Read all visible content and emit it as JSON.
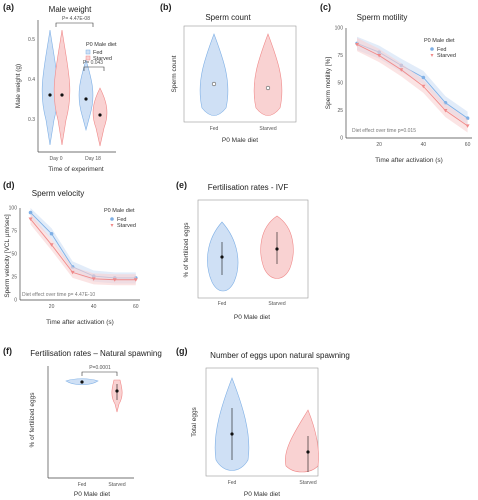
{
  "colors": {
    "fed": "#7fb0e6",
    "starved": "#f08a8a",
    "fed_fill": "#cfe0f5",
    "starved_fill": "#f9d2d2",
    "axis": "#444444"
  },
  "chart_data": [
    {
      "panel": "(a)",
      "type": "violin",
      "title": "Male weight",
      "xlabel": "Time of experiment",
      "ylabel": "Male weight (g)",
      "categories": [
        "Day 0",
        "Day 18"
      ],
      "ylim": [
        0.25,
        0.55
      ],
      "yticks": [
        "0.3",
        "0.4",
        "0.5"
      ],
      "series": [
        {
          "name": "Fed",
          "means": [
            0.41,
            0.39
          ]
        },
        {
          "name": "Starved",
          "means": [
            0.41,
            0.32
          ]
        }
      ],
      "legend_title": "P0 Male diet",
      "annotations": [
        "P= 4.47E-08",
        "P= 0.043"
      ]
    },
    {
      "panel": "(b)",
      "type": "violin",
      "title": "Sperm count",
      "xlabel": "P0 Male diet",
      "ylabel": "Sperm count",
      "categories": [
        "Fed",
        "Starved"
      ],
      "series": [
        {
          "name": "Fed",
          "means": [
            0.5
          ]
        },
        {
          "name": "Starved",
          "means": [
            0.45
          ]
        }
      ]
    },
    {
      "panel": "(c)",
      "type": "line",
      "title": "Sperm motility",
      "xlabel": "Time after activation (s)",
      "ylabel": "Sperm motility [%]",
      "x": [
        10,
        20,
        30,
        40,
        50,
        60
      ],
      "xticks": [
        "20",
        "40",
        "60"
      ],
      "xlim": [
        5,
        62
      ],
      "ylim": [
        0,
        100
      ],
      "yticks": [
        "0",
        "25",
        "50",
        "75",
        "100"
      ],
      "series": [
        {
          "name": "Fed",
          "values": [
            86,
            78,
            66,
            55,
            32,
            18
          ]
        },
        {
          "name": "Starved",
          "values": [
            85,
            75,
            62,
            47,
            25,
            11
          ]
        }
      ],
      "legend_title": "P0 Male diet",
      "annotations": [
        "Diet effect over time p=0.015"
      ]
    },
    {
      "panel": "(d)",
      "type": "line",
      "title": "Sperm velocity",
      "xlabel": "Time after activation (s)",
      "ylabel": "Sperm velocity [VCL µm/sec]",
      "x": [
        10,
        20,
        30,
        40,
        50,
        60
      ],
      "xticks": [
        "20",
        "40",
        "60"
      ],
      "xlim": [
        5,
        62
      ],
      "ylim": [
        0,
        100
      ],
      "yticks": [
        "0",
        "25",
        "50",
        "75",
        "100"
      ],
      "series": [
        {
          "name": "Fed",
          "values": [
            95,
            72,
            36,
            26,
            24,
            24
          ]
        },
        {
          "name": "Starved",
          "values": [
            88,
            60,
            30,
            23,
            22,
            22
          ]
        }
      ],
      "legend_title": "P0 Male diet",
      "annotations": [
        "Diet effect over time p= 4.47E-10"
      ]
    },
    {
      "panel": "(e)",
      "type": "violin",
      "title": "Fertilisation rates - IVF",
      "xlabel": "P0 Male diet",
      "ylabel": "% of fertilized eggs",
      "categories": [
        "Fed",
        "Starved"
      ],
      "series": [
        {
          "name": "Fed",
          "means": [
            0.47
          ]
        },
        {
          "name": "Starved",
          "means": [
            0.55
          ]
        }
      ]
    },
    {
      "panel": "(f)",
      "type": "violin",
      "title": "Fertilisation rates – Natural spawning",
      "xlabel": "P0 Male diet",
      "ylabel": "% of fertilized eggs",
      "categories": [
        "Fed",
        "Starved"
      ],
      "series": [
        {
          "name": "Fed",
          "means": [
            0.96
          ]
        },
        {
          "name": "Starved",
          "means": [
            0.88
          ]
        }
      ],
      "annotations": [
        "P=0.0001"
      ]
    },
    {
      "panel": "(g)",
      "type": "violin",
      "title": "Number of eggs upon natural spawning",
      "xlabel": "P0 Male diet",
      "ylabel": "Total eggs",
      "categories": [
        "Fed",
        "Starved"
      ],
      "series": [
        {
          "name": "Fed",
          "means": [
            0.5
          ]
        },
        {
          "name": "Starved",
          "means": [
            0.2
          ]
        }
      ]
    }
  ]
}
